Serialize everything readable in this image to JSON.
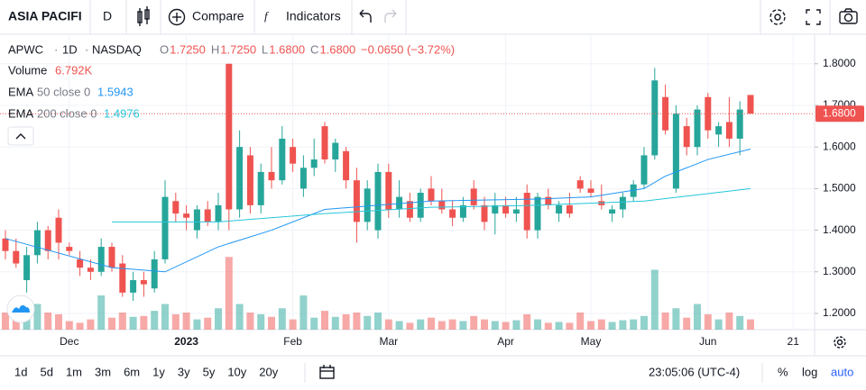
{
  "toolbar": {
    "symbol": "ASIA PACIFI",
    "interval": "D",
    "compare": "Compare",
    "indicators": "Indicators"
  },
  "legend": {
    "ticker": "APWC",
    "interval": "1D",
    "exchange": "NASDAQ",
    "ohlc": [
      {
        "key": "O",
        "value": "1.7250"
      },
      {
        "key": "H",
        "value": "1.7250"
      },
      {
        "key": "L",
        "value": "1.6800"
      },
      {
        "key": "C",
        "value": "1.6800"
      }
    ],
    "change": "−0.0650 (−3.72%)",
    "volume": {
      "name": "Volume",
      "value": "6.792K"
    },
    "ema50": {
      "name": "EMA",
      "params": "50 close 0",
      "value": "1.5943"
    },
    "ema200": {
      "name": "EMA",
      "params": "200 close 0",
      "value": "1.4976"
    }
  },
  "chart_data": {
    "type": "candlestick",
    "up_color": "#26a69a",
    "down_color": "#ef5350",
    "ylim": [
      1.161,
      1.871
    ],
    "yticks": [
      {
        "value": 1.2,
        "label": "1.2000"
      },
      {
        "value": 1.3,
        "label": "1.3000"
      },
      {
        "value": 1.4,
        "label": "1.4000"
      },
      {
        "value": 1.5,
        "label": "1.5000"
      },
      {
        "value": 1.6,
        "label": "1.6000"
      },
      {
        "value": 1.7,
        "label": "1.7000"
      },
      {
        "value": 1.8,
        "label": "1.8000"
      }
    ],
    "x_labels": [
      {
        "label": "Dec",
        "index": 6
      },
      {
        "label": "2023",
        "index": 17
      },
      {
        "label": "Feb",
        "index": 27
      },
      {
        "label": "Mar",
        "index": 36
      },
      {
        "label": "Apr",
        "index": 47
      },
      {
        "label": "May",
        "index": 55
      },
      {
        "label": "Jun",
        "index": 66
      },
      {
        "label": "21",
        "index": 74
      }
    ],
    "candles": [
      [
        1.38,
        1.4,
        1.33,
        1.35
      ],
      [
        1.35,
        1.38,
        1.31,
        1.32
      ],
      [
        1.28,
        1.36,
        1.25,
        1.34
      ],
      [
        1.34,
        1.42,
        1.32,
        1.4
      ],
      [
        1.4,
        1.41,
        1.33,
        1.35
      ],
      [
        1.43,
        1.45,
        1.33,
        1.37
      ],
      [
        1.36,
        1.37,
        1.34,
        1.35
      ],
      [
        1.33,
        1.35,
        1.29,
        1.31
      ],
      [
        1.31,
        1.33,
        1.28,
        1.3
      ],
      [
        1.3,
        1.38,
        1.29,
        1.36
      ],
      [
        1.36,
        1.37,
        1.3,
        1.31
      ],
      [
        1.32,
        1.34,
        1.24,
        1.25
      ],
      [
        1.25,
        1.3,
        1.23,
        1.28
      ],
      [
        1.28,
        1.3,
        1.24,
        1.27
      ],
      [
        1.26,
        1.35,
        1.25,
        1.33
      ],
      [
        1.33,
        1.52,
        1.32,
        1.48
      ],
      [
        1.47,
        1.49,
        1.42,
        1.44
      ],
      [
        1.44,
        1.46,
        1.4,
        1.43
      ],
      [
        1.4,
        1.46,
        1.38,
        1.45
      ],
      [
        1.45,
        1.47,
        1.41,
        1.42
      ],
      [
        1.42,
        1.49,
        1.4,
        1.46
      ],
      [
        1.8,
        1.8,
        1.4,
        1.45
      ],
      [
        1.45,
        1.64,
        1.43,
        1.6
      ],
      [
        1.58,
        1.6,
        1.44,
        1.46
      ],
      [
        1.46,
        1.56,
        1.44,
        1.54
      ],
      [
        1.54,
        1.6,
        1.5,
        1.52
      ],
      [
        1.52,
        1.65,
        1.51,
        1.62
      ],
      [
        1.6,
        1.62,
        1.54,
        1.56
      ],
      [
        1.5,
        1.58,
        1.48,
        1.55
      ],
      [
        1.55,
        1.62,
        1.53,
        1.57
      ],
      [
        1.65,
        1.66,
        1.56,
        1.57
      ],
      [
        1.57,
        1.62,
        1.54,
        1.61
      ],
      [
        1.59,
        1.6,
        1.5,
        1.52
      ],
      [
        1.52,
        1.55,
        1.37,
        1.42
      ],
      [
        1.42,
        1.52,
        1.4,
        1.5
      ],
      [
        1.4,
        1.56,
        1.38,
        1.54
      ],
      [
        1.54,
        1.56,
        1.43,
        1.45
      ],
      [
        1.45,
        1.52,
        1.43,
        1.48
      ],
      [
        1.47,
        1.49,
        1.42,
        1.43
      ],
      [
        1.43,
        1.5,
        1.42,
        1.49
      ],
      [
        1.5,
        1.53,
        1.46,
        1.47
      ],
      [
        1.47,
        1.5,
        1.44,
        1.45
      ],
      [
        1.45,
        1.47,
        1.41,
        1.43
      ],
      [
        1.43,
        1.48,
        1.42,
        1.46
      ],
      [
        1.5,
        1.52,
        1.45,
        1.46
      ],
      [
        1.46,
        1.48,
        1.4,
        1.42
      ],
      [
        1.44,
        1.49,
        1.39,
        1.46
      ],
      [
        1.46,
        1.48,
        1.43,
        1.44
      ],
      [
        1.44,
        1.48,
        1.42,
        1.45
      ],
      [
        1.49,
        1.51,
        1.38,
        1.4
      ],
      [
        1.4,
        1.49,
        1.38,
        1.48
      ],
      [
        1.48,
        1.5,
        1.45,
        1.46
      ],
      [
        1.44,
        1.47,
        1.42,
        1.46
      ],
      [
        1.46,
        1.49,
        1.43,
        1.44
      ],
      [
        1.52,
        1.53,
        1.49,
        1.5
      ],
      [
        1.5,
        1.52,
        1.48,
        1.49
      ],
      [
        1.47,
        1.51,
        1.45,
        1.46
      ],
      [
        1.44,
        1.46,
        1.42,
        1.45
      ],
      [
        1.45,
        1.49,
        1.43,
        1.48
      ],
      [
        1.48,
        1.52,
        1.47,
        1.51
      ],
      [
        1.51,
        1.6,
        1.5,
        1.58
      ],
      [
        1.58,
        1.79,
        1.57,
        1.76
      ],
      [
        1.72,
        1.75,
        1.63,
        1.64
      ],
      [
        1.5,
        1.7,
        1.49,
        1.68
      ],
      [
        1.65,
        1.67,
        1.58,
        1.6
      ],
      [
        1.6,
        1.7,
        1.58,
        1.69
      ],
      [
        1.72,
        1.73,
        1.62,
        1.64
      ],
      [
        1.63,
        1.66,
        1.6,
        1.65
      ],
      [
        1.66,
        1.72,
        1.6,
        1.62
      ],
      [
        1.62,
        1.71,
        1.58,
        1.69
      ],
      [
        1.725,
        1.725,
        1.68,
        1.68
      ]
    ],
    "volume": [
      20,
      15,
      25,
      30,
      20,
      18,
      10,
      8,
      12,
      40,
      14,
      20,
      15,
      16,
      22,
      30,
      18,
      20,
      12,
      14,
      25,
      85,
      30,
      20,
      18,
      15,
      25,
      12,
      40,
      14,
      22,
      15,
      18,
      20,
      16,
      20,
      12,
      10,
      8,
      12,
      14,
      10,
      12,
      10,
      16,
      12,
      10,
      9,
      11,
      18,
      12,
      8,
      9,
      8,
      20,
      10,
      12,
      9,
      11,
      12,
      16,
      70,
      20,
      25,
      14,
      30,
      18,
      12,
      20,
      16,
      12
    ],
    "vlim": [
      0,
      100
    ],
    "ema50": {
      "color": "#2196f3",
      "x": [
        0,
        10,
        15,
        20,
        25,
        30,
        40,
        50,
        55,
        60,
        62,
        66,
        70
      ],
      "values": [
        1.38,
        1.31,
        1.3,
        1.36,
        1.4,
        1.45,
        1.47,
        1.475,
        1.48,
        1.5,
        1.53,
        1.57,
        1.595
      ]
    },
    "ema200": {
      "color": "#26c6da",
      "x": [
        10,
        20,
        30,
        40,
        50,
        60,
        65,
        70
      ],
      "values": [
        1.42,
        1.42,
        1.44,
        1.455,
        1.46,
        1.47,
        1.485,
        1.5
      ]
    },
    "last_price": {
      "value": 1.68,
      "label": "1.6800"
    }
  },
  "bottom": {
    "ranges": [
      "1d",
      "5d",
      "1m",
      "3m",
      "6m",
      "1y",
      "3y",
      "5y",
      "10y",
      "20y"
    ],
    "time": "23:05:06 (UTC-4)",
    "percent": "%",
    "log": "log",
    "auto": "auto"
  }
}
